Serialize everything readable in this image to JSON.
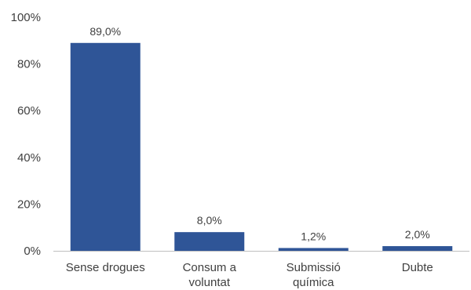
{
  "chart_data": {
    "type": "bar",
    "title": "",
    "xlabel": "",
    "ylabel": "",
    "categories": [
      [
        "Sense drogues"
      ],
      [
        "Consum a",
        "voluntat"
      ],
      [
        "Submissió",
        "química"
      ],
      [
        "Dubte"
      ]
    ],
    "values": [
      89.0,
      8.0,
      1.2,
      2.0
    ],
    "data_labels": [
      "89,0%",
      "8,0%",
      "1,2%",
      "2,0%"
    ],
    "ylim": [
      0,
      100
    ],
    "yticks": [
      0,
      20,
      40,
      60,
      80,
      100
    ],
    "ytick_labels": [
      "0%",
      "20%",
      "40%",
      "60%",
      "80%",
      "100%"
    ],
    "grid": false,
    "legend": "none",
    "bar_color": "#2F5597",
    "axis_color": "#BFBFBF"
  }
}
